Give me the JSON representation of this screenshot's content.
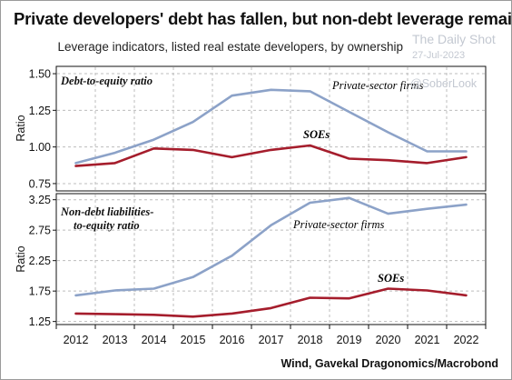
{
  "title": "Private developers' debt has fallen, but non-debt leverage remains high",
  "subtitle": "Leverage indicators, listed real estate developers, by ownership",
  "watermark": {
    "name": "The Daily Shot",
    "date": "27-Jul-2023",
    "handle": "@SoberLook"
  },
  "source": "Wind, Gavekal Dragonomics/Macrobond",
  "colors": {
    "private": "#8ca2c8",
    "soe": "#a51d2c",
    "grid": "#bdbdbd",
    "axis": "#111111"
  },
  "chart_data": [
    {
      "type": "line",
      "title": "Debt-to-equity ratio",
      "ylabel": "Ratio",
      "x": [
        2012,
        2013,
        2014,
        2015,
        2016,
        2017,
        2018,
        2019,
        2020,
        2021,
        2022
      ],
      "ylim": [
        0.7,
        1.55
      ],
      "yticks": [
        "0.75",
        "1.00",
        "1.25",
        "1.50"
      ],
      "grid": true,
      "series": [
        {
          "name": "Private-sector firms",
          "color": "#8ca2c8",
          "values": [
            0.89,
            0.96,
            1.05,
            1.17,
            1.35,
            1.39,
            1.38,
            1.24,
            1.1,
            0.97,
            0.97
          ]
        },
        {
          "name": "SOEs",
          "color": "#a51d2c",
          "values": [
            0.87,
            0.89,
            0.99,
            0.98,
            0.93,
            0.98,
            1.01,
            0.92,
            0.91,
            0.89,
            0.93
          ]
        }
      ]
    },
    {
      "type": "line",
      "title": "Non-debt liabilities-to-equity ratio",
      "ylabel": "Ratio",
      "x": [
        2012,
        2013,
        2014,
        2015,
        2016,
        2017,
        2018,
        2019,
        2020,
        2021,
        2022
      ],
      "ylim": [
        1.2,
        3.35
      ],
      "yticks": [
        "1.25",
        "1.75",
        "2.25",
        "2.75",
        "3.25"
      ],
      "grid": true,
      "series": [
        {
          "name": "Private-sector firms",
          "color": "#8ca2c8",
          "values": [
            1.68,
            1.76,
            1.79,
            1.98,
            2.33,
            2.83,
            3.2,
            3.28,
            3.02,
            3.1,
            3.17
          ]
        },
        {
          "name": "SOEs",
          "color": "#a51d2c",
          "values": [
            1.38,
            1.37,
            1.36,
            1.33,
            1.38,
            1.47,
            1.64,
            1.63,
            1.79,
            1.76,
            1.68
          ]
        }
      ]
    }
  ]
}
